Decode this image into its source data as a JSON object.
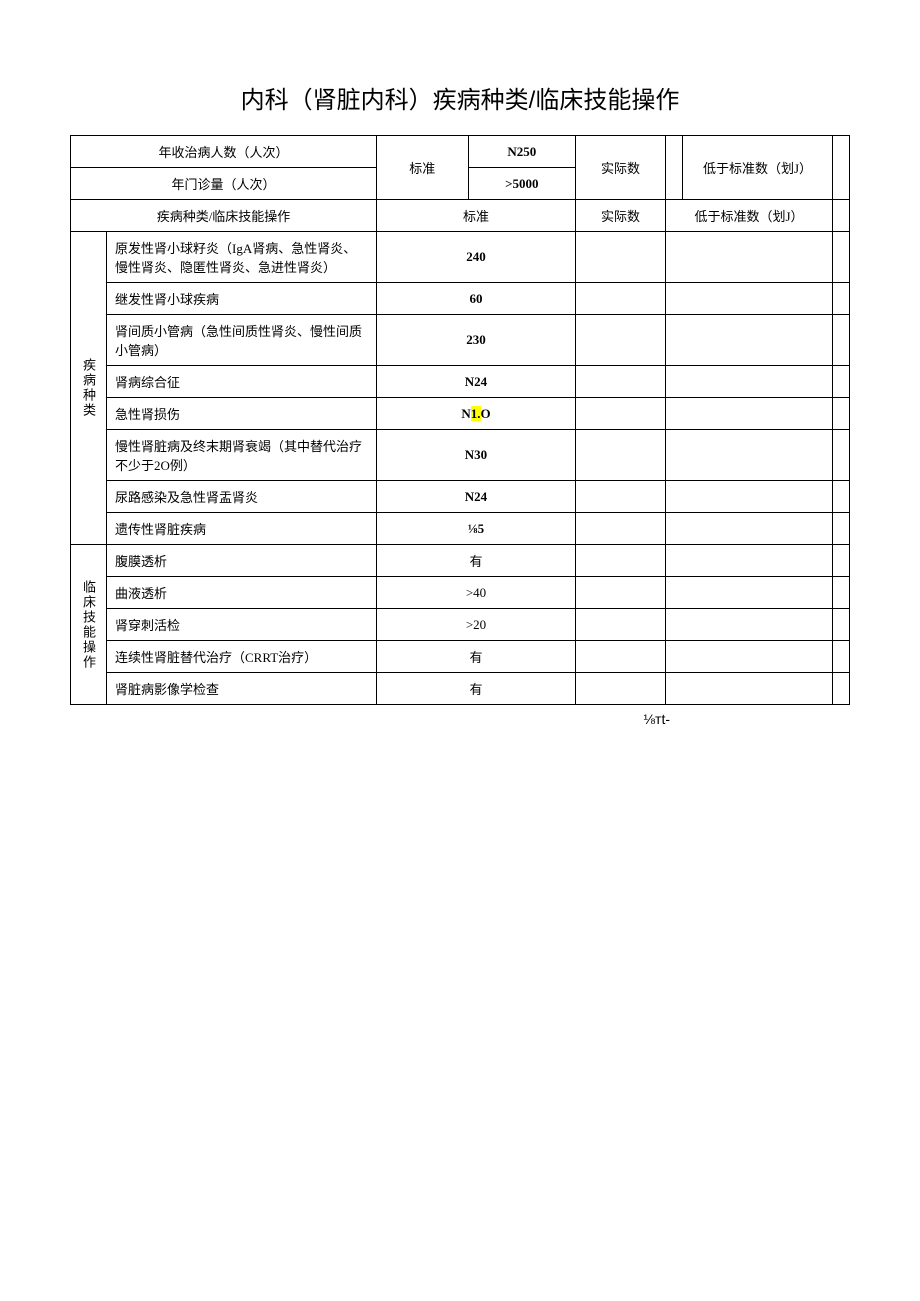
{
  "title": "内科（肾脏内科）疾病种类/临床技能操作",
  "header": {
    "row1_label": "年收治病人数（人次）",
    "row2_label": "年门诊量（人次）",
    "std_label": "标准",
    "row1_std": "N250",
    "row2_std": ">5000",
    "actual_label": "实际数",
    "flag_label": "低于标准数（划J）"
  },
  "section_header": {
    "category_label": "疾病种类/临床技能操作",
    "std_label": "标准",
    "actual_label": "实际数",
    "flag_label": "低于标准数（划J）"
  },
  "group1": {
    "label": "疾病种类",
    "rows": [
      {
        "desc": "原发性肾小球籽炎（IgA肾病、急性肾炎、慢性肾炎、隐匿性肾炎、急进性肾炎）",
        "std_plain": "",
        "std_bold": "240"
      },
      {
        "desc": "继发性肾小球疾病",
        "std_plain": "",
        "std_bold": "60"
      },
      {
        "desc": "肾间质小管病（急性间质性肾炎、慢性间质小管病）",
        "std_plain": "",
        "std_bold": "230"
      },
      {
        "desc": "肾病综合征",
        "std_plain": "",
        "std_bold": "N24"
      },
      {
        "desc": "急性肾损伤",
        "std_pre": "N",
        "std_hl": "1.",
        "std_post": "O"
      },
      {
        "desc": "慢性肾脏病及终末期肾衰竭（其中替代治疗不少于2O例）",
        "std_plain": "",
        "std_bold": "N30"
      },
      {
        "desc": "尿路感染及急性肾盂肾炎",
        "std_plain": "",
        "std_bold": "N24"
      },
      {
        "desc": "遗传性肾脏疾病",
        "std_plain": "",
        "std_bold": "⅛5"
      }
    ]
  },
  "group2": {
    "label": "临床技能操作",
    "rows": [
      {
        "desc": "腹膜透析",
        "std": "有"
      },
      {
        "desc": "曲液透析",
        "std": ">40"
      },
      {
        "desc": "肾穿刺活检",
        "std": ">20"
      },
      {
        "desc": "连续性肾脏替代治疗（CRRT治疗）",
        "std": "有"
      },
      {
        "desc": "肾脏病影像学检查",
        "std": "有"
      }
    ]
  },
  "footer": "⅛тt-",
  "colors": {
    "highlight": "#ffff00",
    "border": "#000000",
    "text": "#000000",
    "bg": "#ffffff"
  }
}
